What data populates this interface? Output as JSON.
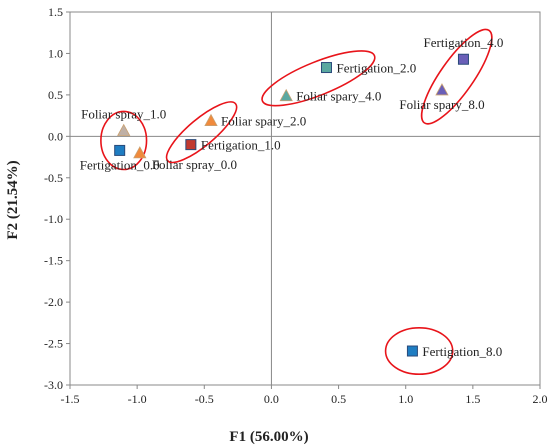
{
  "chart_data": {
    "type": "scatter",
    "title": "",
    "xlabel": "F1 (56.00%)",
    "ylabel": "F2 (21.54%)",
    "xlim": [
      -1.5,
      2.0
    ],
    "ylim": [
      -3.0,
      1.5
    ],
    "x_ticks": [
      "-1.5",
      "-1.0",
      "-0.5",
      "0.0",
      "0.5",
      "1.0",
      "1.5",
      "2.0"
    ],
    "y_ticks": [
      "1.5",
      "1.0",
      "0.5",
      "0.0",
      "-0.5",
      "-1.0",
      "-1.5",
      "-2.0",
      "-2.5",
      "-3.0"
    ],
    "grid": false,
    "reference_lines": {
      "x": 0,
      "y": 0
    },
    "points": [
      {
        "label": "Fertigation_4.0",
        "x": 1.43,
        "y": 0.93,
        "marker": "square-purple",
        "label_pos": "above"
      },
      {
        "label": "Fertigation_2.0",
        "x": 0.41,
        "y": 0.83,
        "marker": "square-olive",
        "label_pos": "right"
      },
      {
        "label": "Foliar spary_4.0",
        "x": 0.11,
        "y": 0.49,
        "marker": "triangle-olive",
        "label_pos": "right"
      },
      {
        "label": "Foliar spary_8.0",
        "x": 1.27,
        "y": 0.56,
        "marker": "triangle-purple",
        "label_pos": "below"
      },
      {
        "label": "Foliar spray_1.0",
        "x": -1.1,
        "y": 0.07,
        "marker": "triangle-gray",
        "label_pos": "above"
      },
      {
        "label": "Foliar spary_2.0",
        "x": -0.45,
        "y": 0.19,
        "marker": "triangle-orange",
        "label_pos": "right"
      },
      {
        "label": "Fertigation_1.0",
        "x": -0.6,
        "y": -0.1,
        "marker": "square-red",
        "label_pos": "right"
      },
      {
        "label": "Foliar spray_0.0",
        "x": -0.98,
        "y": -0.2,
        "marker": "triangle-orange",
        "label_pos": "below-right"
      },
      {
        "label": "Fertigation_0.0",
        "x": -1.13,
        "y": -0.17,
        "marker": "square-blue",
        "label_pos": "below"
      },
      {
        "label": "Fertigation_8.0",
        "x": 1.05,
        "y": -2.59,
        "marker": "square-blue",
        "label_pos": "right"
      }
    ],
    "groups": [
      {
        "members": [
          "Foliar spray_1.0",
          "Foliar spray_0.0"
        ],
        "cx": -1.1,
        "cy": -0.05,
        "rx": 0.17,
        "ry": 0.35,
        "angle": 0
      },
      {
        "members": [
          "Foliar spary_2.0",
          "Fertigation_1.0"
        ],
        "cx": -0.52,
        "cy": 0.05,
        "rx": 0.33,
        "ry": 0.16,
        "angle": -40
      },
      {
        "members": [
          "Fertigation_2.0",
          "Foliar spary_4.0"
        ],
        "cx": 0.35,
        "cy": 0.7,
        "rx": 0.45,
        "ry": 0.2,
        "angle": -22
      },
      {
        "members": [
          "Fertigation_4.0",
          "Foliar spary_8.0"
        ],
        "cx": 1.38,
        "cy": 0.72,
        "rx": 0.42,
        "ry": 0.2,
        "angle": -55
      },
      {
        "members": [
          "Fertigation_8.0"
        ],
        "cx": 1.1,
        "cy": -2.59,
        "rx": 0.25,
        "ry": 0.28,
        "angle": 0
      }
    ],
    "colors": {
      "blue": "#1f7dc2",
      "purple": "#6a5fb8",
      "olive": "#5aa8a0",
      "orange": "#f08a3c",
      "gray": "#bfb0a6",
      "red": "#c23a30",
      "ellipse": "#e8141a",
      "axis": "#888888"
    }
  }
}
